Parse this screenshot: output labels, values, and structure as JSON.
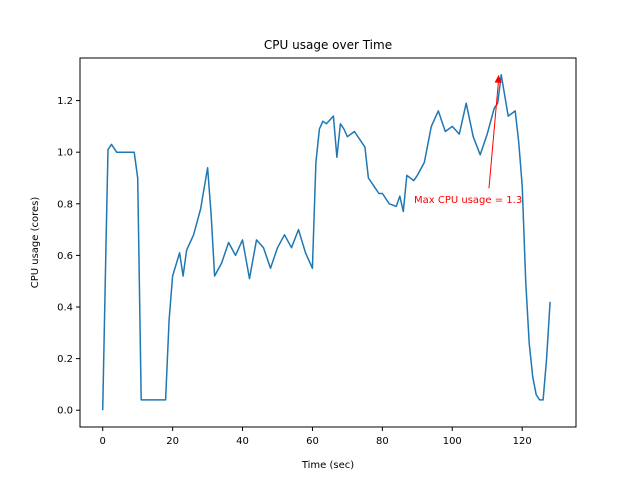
{
  "chart_data": {
    "type": "line",
    "title": "CPU usage over Time",
    "xlabel": "Time (sec)",
    "ylabel": "CPU usage (cores)",
    "xlim": [
      -6.5,
      135.4
    ],
    "ylim": [
      -0.065,
      1.365
    ],
    "xticks": [
      0,
      20,
      40,
      60,
      80,
      100,
      120
    ],
    "yticks": [
      0.0,
      0.2,
      0.4,
      0.6,
      0.8,
      1.0,
      1.2
    ],
    "ytick_labels": [
      "0.0",
      "0.2",
      "0.4",
      "0.6",
      "0.8",
      "1.0",
      "1.2"
    ],
    "grid": false,
    "series": [
      {
        "color": "#1f77b4",
        "x": [
          0,
          1,
          1.5,
          2.5,
          4,
          6,
          8,
          9,
          10,
          11,
          12,
          14,
          16,
          17,
          18,
          19,
          20,
          22,
          23,
          24,
          26,
          28,
          30,
          31,
          32,
          34,
          36,
          38,
          40,
          42,
          44,
          46,
          48,
          50,
          52,
          54,
          56,
          58,
          60,
          61,
          62,
          63,
          64,
          66,
          67,
          68,
          69,
          70,
          71,
          72,
          73,
          74,
          75,
          76,
          78,
          79,
          80,
          82,
          84,
          85,
          86,
          87,
          88,
          89,
          90,
          92,
          94,
          96,
          98,
          100,
          102,
          104,
          106,
          108,
          110,
          112,
          113,
          114,
          115,
          116,
          117,
          118,
          119,
          120,
          121,
          122,
          123,
          124,
          125,
          126,
          127,
          128
        ],
        "y": [
          0.0,
          0.68,
          1.01,
          1.03,
          1.0,
          1.0,
          1.0,
          1.0,
          0.9,
          0.04,
          0.04,
          0.04,
          0.04,
          0.04,
          0.04,
          0.35,
          0.52,
          0.61,
          0.52,
          0.62,
          0.68,
          0.78,
          0.94,
          0.76,
          0.52,
          0.57,
          0.65,
          0.6,
          0.66,
          0.51,
          0.66,
          0.63,
          0.55,
          0.63,
          0.68,
          0.63,
          0.7,
          0.61,
          0.55,
          0.96,
          1.09,
          1.12,
          1.11,
          1.14,
          0.98,
          1.11,
          1.09,
          1.06,
          1.07,
          1.08,
          1.06,
          1.04,
          1.02,
          0.9,
          0.86,
          0.84,
          0.84,
          0.8,
          0.79,
          0.83,
          0.77,
          0.91,
          0.9,
          0.89,
          0.91,
          0.96,
          1.1,
          1.16,
          1.08,
          1.1,
          1.07,
          1.19,
          1.06,
          0.99,
          1.07,
          1.17,
          1.19,
          1.3,
          1.22,
          1.14,
          1.15,
          1.16,
          1.04,
          0.87,
          0.5,
          0.26,
          0.13,
          0.06,
          0.04,
          0.04,
          0.2,
          0.42
        ]
      }
    ],
    "annotation": {
      "text": "Max CPU usage = 1.3",
      "color": "#ff0000",
      "point": [
        113.3,
        1.3
      ],
      "text_anchor": [
        110.5,
        0.86
      ]
    }
  }
}
